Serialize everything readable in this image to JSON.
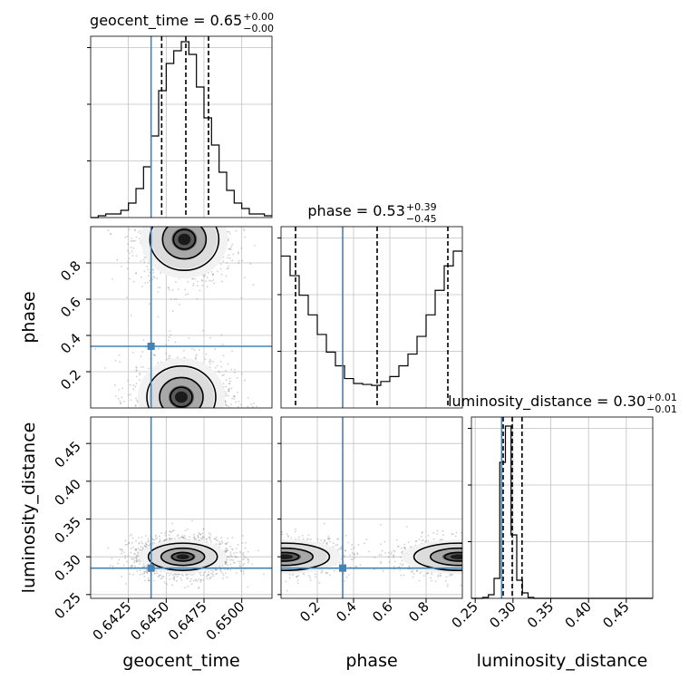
{
  "chart_data": {
    "type": "corner",
    "parameters": [
      "geocent_time",
      "phase",
      "luminosity_distance"
    ],
    "truths": {
      "geocent_time": 0.644,
      "phase": 0.34,
      "luminosity_distance": 0.285
    },
    "diagonal": [
      {
        "param": "geocent_time",
        "title_main": "geocent_time = 0.65",
        "title_sup": "+0.00",
        "title_sub": "−0.00",
        "xlim": [
          0.64,
          0.652
        ],
        "quantiles": [
          0.6447,
          0.6463,
          0.6478
        ],
        "bin_width": 0.0005,
        "bins_start": 0.64,
        "counts": [
          0,
          1,
          2,
          2,
          4,
          8,
          16,
          28,
          45,
          70,
          85,
          92,
          97,
          90,
          72,
          55,
          40,
          25,
          15,
          8,
          5,
          2,
          2,
          1
        ],
        "ylim": [
          0,
          100
        ]
      },
      {
        "param": "phase",
        "title_main": "phase = 0.53",
        "title_sup": "+0.39",
        "title_sub": "−0.45",
        "xlim": [
          0.0,
          1.0
        ],
        "quantiles": [
          0.08,
          0.53,
          0.92
        ],
        "bin_width": 0.05,
        "bins_start": 0.0,
        "counts": [
          155,
          135,
          115,
          95,
          75,
          57,
          43,
          30,
          25,
          24,
          23,
          27,
          32,
          43,
          55,
          73,
          95,
          120,
          145,
          160
        ],
        "ylim": [
          0,
          185
        ]
      },
      {
        "param": "luminosity_distance",
        "title_main": "luminosity_distance = 0.30",
        "title_sup": "+0.01",
        "title_sub": "−0.01",
        "xlim": [
          0.245,
          0.485
        ],
        "quantiles": [
          0.287,
          0.299,
          0.312
        ],
        "bin_width": 0.0075,
        "bins_start": 0.245,
        "counts": [
          0,
          0,
          1,
          4,
          22,
          150,
          190,
          70,
          20,
          6,
          1,
          0,
          0,
          0,
          0,
          0,
          0,
          0,
          0,
          0,
          0,
          0,
          0,
          0,
          0,
          0,
          0,
          0,
          0,
          0,
          0,
          0
        ],
        "ylim": [
          0,
          200
        ]
      }
    ],
    "pairs": [
      {
        "x": "geocent_time",
        "y": "phase",
        "modes": [
          [
            0.6462,
            0.93
          ],
          [
            0.646,
            0.06
          ]
        ],
        "spread": [
          0.0012,
          0.09
        ],
        "n": 2200,
        "lines": 3
      },
      {
        "x": "geocent_time",
        "y": "luminosity_distance",
        "modes": [
          [
            0.6461,
            0.3
          ]
        ],
        "spread": [
          0.0012,
          0.0095
        ],
        "n": 1800,
        "lines": 3
      },
      {
        "x": "phase",
        "y": "luminosity_distance",
        "modes": [
          [
            0.02,
            0.3
          ],
          [
            0.98,
            0.3
          ]
        ],
        "spread": [
          0.13,
          0.0095
        ],
        "n": 1800,
        "lines": 3
      }
    ],
    "ticks": {
      "geocent_time": [
        "0.6425",
        "0.6450",
        "0.6475",
        "0.6500"
      ],
      "phase": [
        "0.2",
        "0.4",
        "0.6",
        "0.8"
      ],
      "luminosity_distance": [
        "0.25",
        "0.30",
        "0.35",
        "0.40",
        "0.45"
      ]
    },
    "axis_labels": {
      "geocent_time": "geocent_time",
      "phase": "phase",
      "luminosity_distance": "luminosity_distance"
    },
    "colors": {
      "truth": "#4682b4",
      "hist": "#000000",
      "grid": "#c0c0c0",
      "points": "#777777"
    }
  }
}
